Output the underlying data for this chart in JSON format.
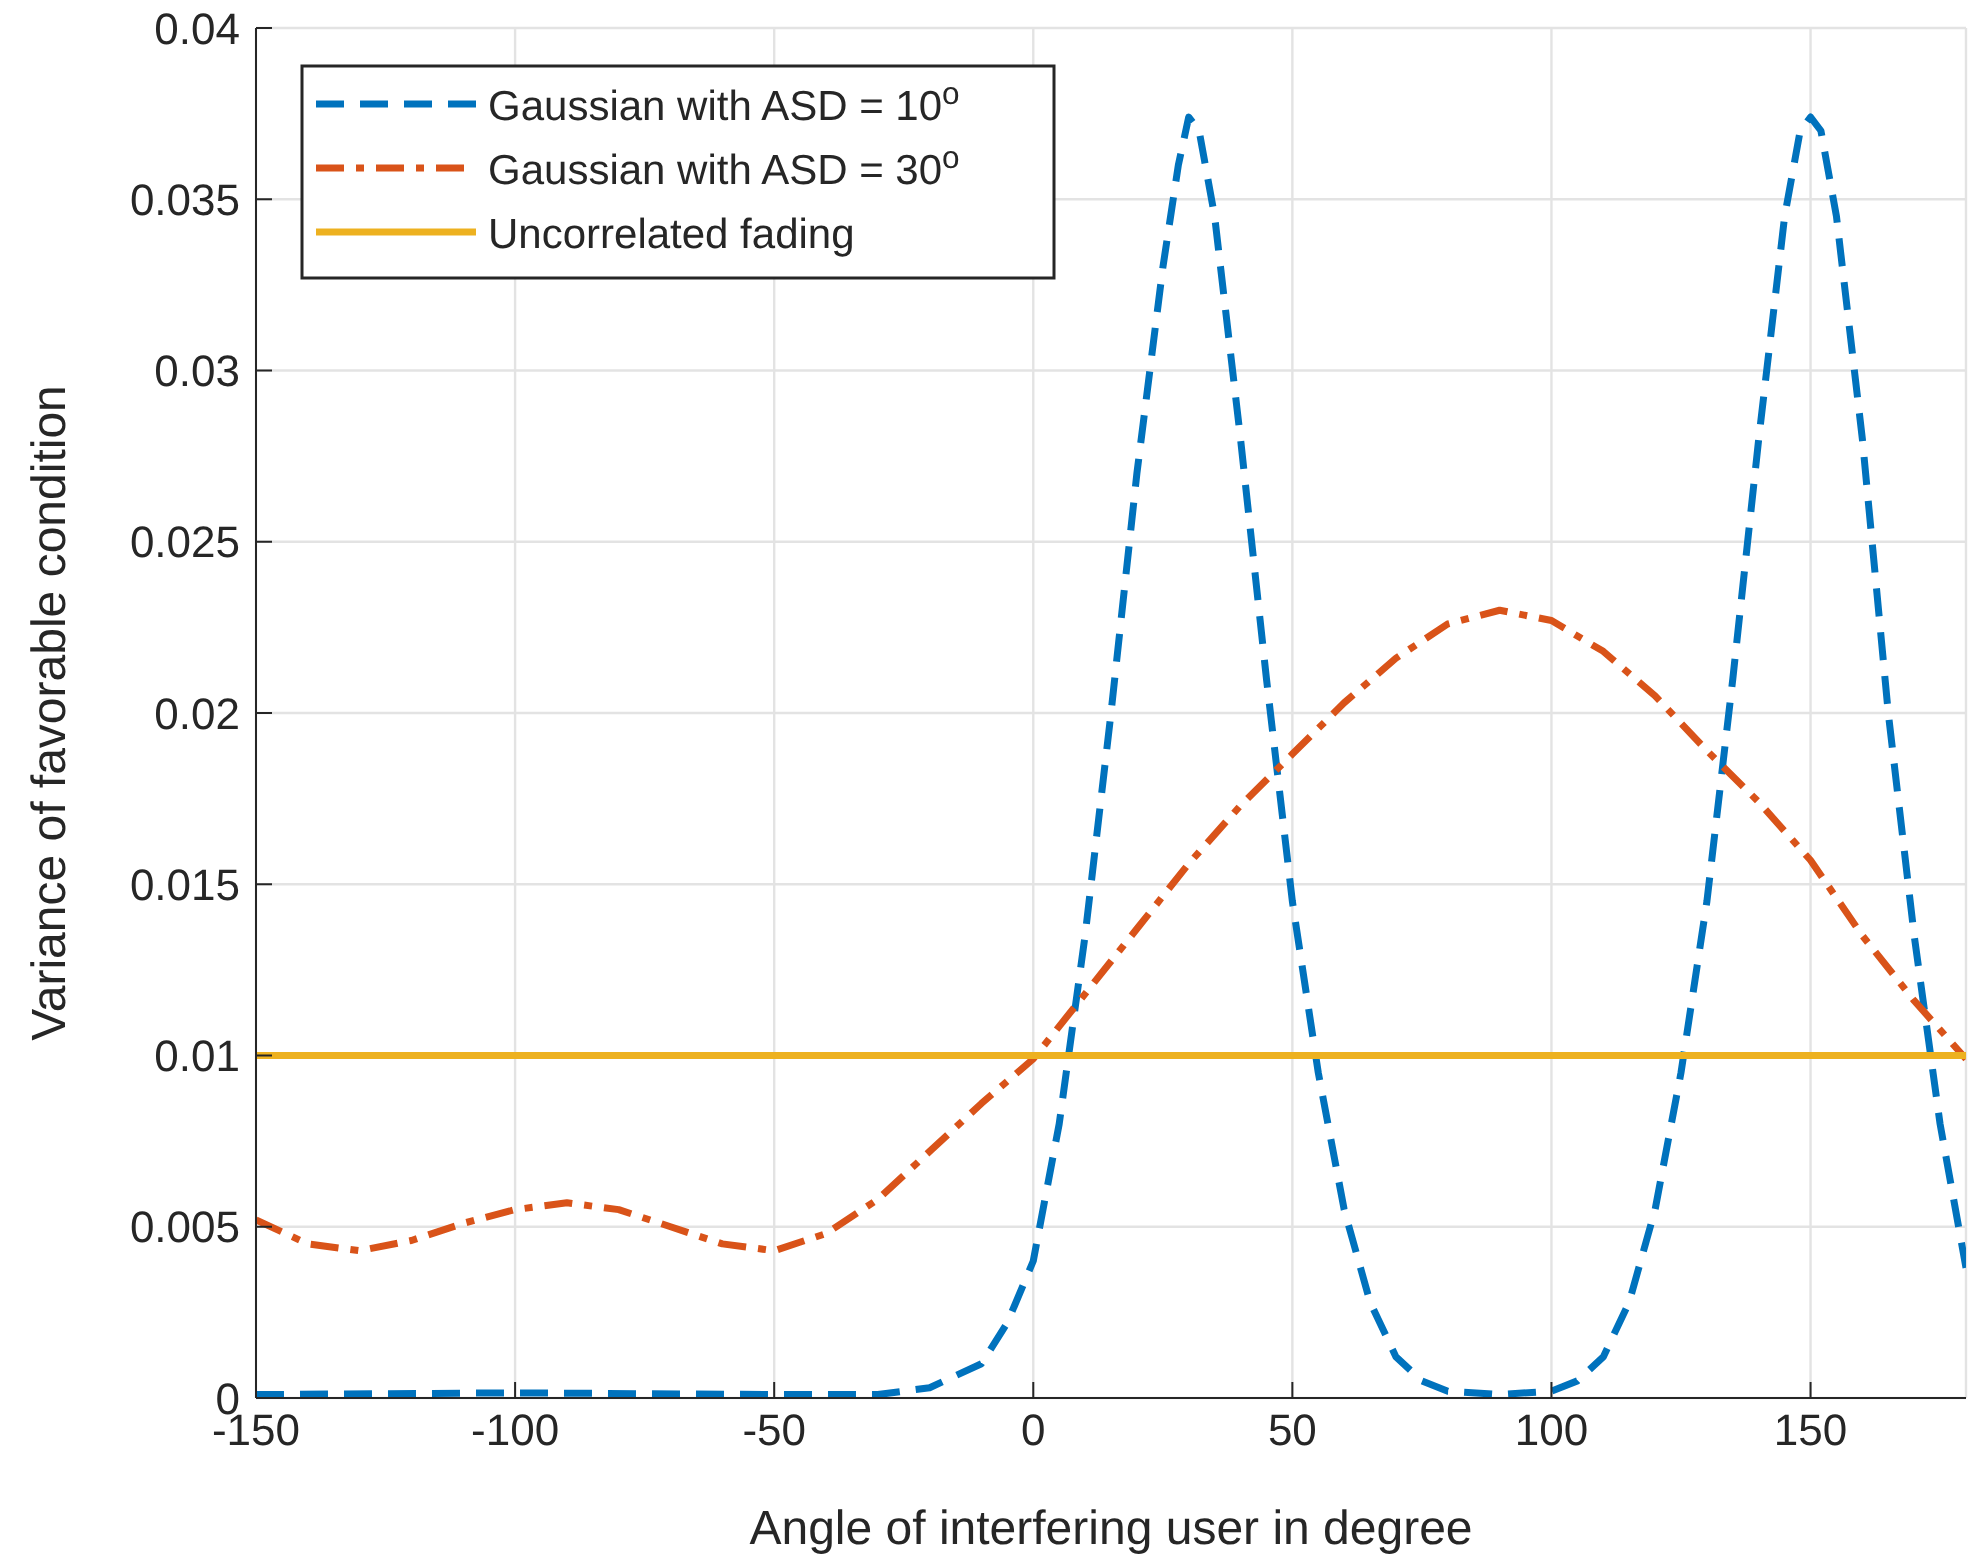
{
  "chart_data": {
    "type": "line",
    "xlabel": "Angle of interfering user in degree",
    "ylabel": "Variance of favorable condition",
    "xlim": [
      -150,
      180
    ],
    "xticks": [
      -150,
      -100,
      -50,
      0,
      50,
      100,
      150
    ],
    "ylim": [
      0,
      0.04
    ],
    "yticks": [
      0,
      0.005,
      0.01,
      0.015,
      0.02,
      0.025,
      0.03,
      0.035,
      0.04
    ],
    "grid": true,
    "legend": "top left",
    "series": [
      {
        "name": "Gaussian with ASD = 10$^{o}$",
        "color": "#0072bd",
        "line_style": "dashed",
        "x": [
          -150,
          -100,
          -50,
          -30,
          -20,
          -10,
          -5,
          0,
          5,
          10,
          15,
          20,
          25,
          28,
          30,
          32,
          35,
          40,
          45,
          50,
          55,
          60,
          65,
          70,
          75,
          80,
          90,
          100,
          105,
          110,
          115,
          120,
          125,
          130,
          135,
          140,
          145,
          148,
          150,
          152,
          155,
          160,
          165,
          170,
          175,
          180
        ],
        "values": [
          0.0001,
          0.00015,
          0.0001,
          0.0001,
          0.0003,
          0.001,
          0.0022,
          0.004,
          0.008,
          0.0135,
          0.02,
          0.027,
          0.033,
          0.036,
          0.0374,
          0.037,
          0.0345,
          0.028,
          0.021,
          0.0145,
          0.0095,
          0.0055,
          0.0028,
          0.0012,
          0.0005,
          0.0002,
          0.0001,
          0.0002,
          0.0005,
          0.0012,
          0.0028,
          0.0055,
          0.0095,
          0.0145,
          0.021,
          0.028,
          0.0345,
          0.037,
          0.0374,
          0.037,
          0.0345,
          0.028,
          0.02,
          0.0135,
          0.008,
          0.0038
        ]
      },
      {
        "name": "Gaussian with ASD = 30$^{o}$",
        "color": "#d95319",
        "line_style": "dashdot",
        "x": [
          -150,
          -140,
          -130,
          -120,
          -110,
          -100,
          -90,
          -80,
          -70,
          -60,
          -50,
          -40,
          -30,
          -20,
          -10,
          0,
          10,
          20,
          30,
          40,
          50,
          60,
          70,
          80,
          90,
          100,
          110,
          120,
          130,
          140,
          150,
          160,
          170,
          180
        ],
        "values": [
          0.0052,
          0.0045,
          0.0043,
          0.0046,
          0.0051,
          0.0055,
          0.0057,
          0.0055,
          0.005,
          0.0045,
          0.0043,
          0.0048,
          0.0058,
          0.0072,
          0.0086,
          0.0099,
          0.0118,
          0.0137,
          0.0156,
          0.0173,
          0.0188,
          0.0203,
          0.0216,
          0.0226,
          0.023,
          0.0227,
          0.0218,
          0.0205,
          0.0189,
          0.0174,
          0.0157,
          0.0135,
          0.0116,
          0.0099
        ]
      },
      {
        "name": "Uncorrelated fading",
        "color": "#edb120",
        "line_style": "solid",
        "x": [
          -150,
          180
        ],
        "values": [
          0.01,
          0.01
        ]
      }
    ]
  }
}
